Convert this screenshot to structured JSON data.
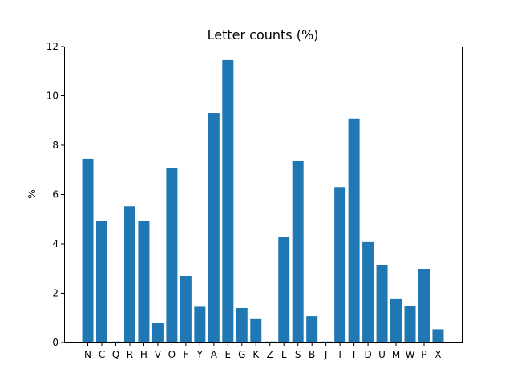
{
  "chart_data": {
    "type": "bar",
    "title": "Letter counts (%)",
    "xlabel": "",
    "ylabel": "%",
    "ylim": [
      0,
      12
    ],
    "yticks": [
      0,
      2,
      4,
      6,
      8,
      10,
      12
    ],
    "grid": false,
    "bar_color": "#1f77b4",
    "categories": [
      "N",
      "C",
      "Q",
      "R",
      "H",
      "V",
      "O",
      "F",
      "Y",
      "A",
      "E",
      "G",
      "K",
      "Z",
      "L",
      "S",
      "B",
      "J",
      "I",
      "T",
      "D",
      "U",
      "M",
      "W",
      "P",
      "X"
    ],
    "values": [
      7.45,
      4.92,
      0.04,
      5.52,
      4.92,
      0.78,
      7.08,
      2.7,
      1.45,
      9.3,
      11.45,
      1.4,
      0.95,
      0.04,
      4.26,
      7.35,
      1.07,
      0.04,
      6.3,
      9.08,
      4.07,
      3.15,
      1.76,
      1.48,
      2.96,
      0.54
    ]
  }
}
